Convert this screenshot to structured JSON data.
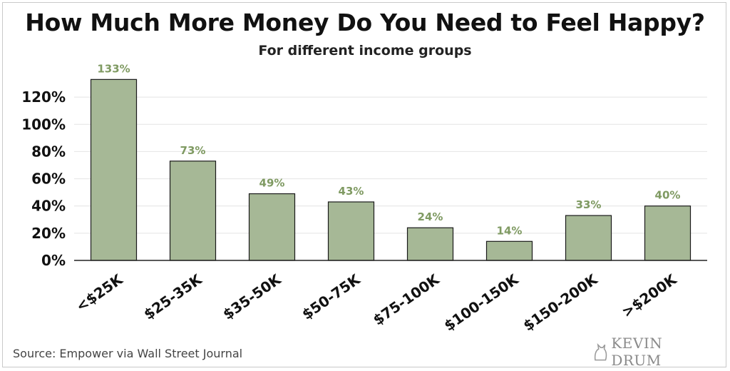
{
  "header": {
    "title": "How Much More Money Do You Need to Feel Happy?",
    "subtitle": "For different income groups"
  },
  "footer": {
    "source": "Source: Empower via Wall Street Journal",
    "logo_text": "KEVIN DRUM"
  },
  "chart_data": {
    "type": "bar",
    "title": "How Much More Money Do You Need to Feel Happy?",
    "subtitle": "For different income groups",
    "categories": [
      "<$25K",
      "$25-35K",
      "$35-50K",
      "$50-75K",
      "$75-100K",
      "$100-150K",
      "$150-200K",
      ">$200K"
    ],
    "values": [
      133,
      73,
      49,
      43,
      24,
      14,
      33,
      40
    ],
    "data_labels": [
      "133%",
      "73%",
      "49%",
      "43%",
      "24%",
      "14%",
      "33%",
      "40%"
    ],
    "y_ticks": [
      0,
      20,
      40,
      60,
      80,
      100,
      120
    ],
    "y_tick_labels": [
      "0%",
      "20%",
      "40%",
      "60%",
      "80%",
      "100%",
      "120%"
    ],
    "ylim": [
      0,
      140
    ],
    "xlabel": "",
    "ylabel": "",
    "grid": true,
    "legend": "none",
    "colors": {
      "bar_fill": "#a6b896",
      "bar_stroke": "#1a1a1a",
      "data_label": "#7f9a62",
      "grid": "#e4e4e4",
      "axis": "#222222"
    }
  }
}
